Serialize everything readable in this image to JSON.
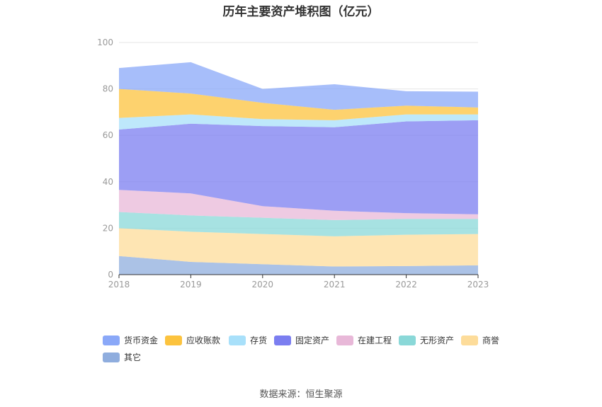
{
  "chart_data": {
    "type": "area",
    "stacked": true,
    "title": "历年主要资产堆积图（亿元）",
    "x": [
      "2018",
      "2019",
      "2020",
      "2021",
      "2022",
      "2023"
    ],
    "ylim": [
      0,
      100
    ],
    "yticks": [
      0,
      20,
      40,
      60,
      80,
      100
    ],
    "grid": true,
    "legend_position": "bottom",
    "series": [
      {
        "name": "其它",
        "color": "#8fadde",
        "values": [
          8.0,
          5.5,
          4.5,
          3.5,
          3.7,
          4.0
        ]
      },
      {
        "name": "商誉",
        "color": "#fddc9a",
        "values": [
          12.0,
          13.0,
          13.0,
          13.0,
          13.5,
          13.5
        ]
      },
      {
        "name": "无形资产",
        "color": "#8ad8d8",
        "values": [
          7.0,
          7.0,
          7.0,
          7.0,
          6.8,
          6.5
        ]
      },
      {
        "name": "在建工程",
        "color": "#e8b8d8",
        "values": [
          9.5,
          9.5,
          5.0,
          4.0,
          2.5,
          2.0
        ]
      },
      {
        "name": "固定资产",
        "color": "#7b7ef0",
        "values": [
          26.0,
          30.0,
          34.5,
          36.0,
          39.5,
          40.5
        ]
      },
      {
        "name": "存货",
        "color": "#a8e0fa",
        "values": [
          5.0,
          4.0,
          3.0,
          3.0,
          3.0,
          2.5
        ]
      },
      {
        "name": "应收账款",
        "color": "#fcc33e",
        "values": [
          12.5,
          9.0,
          7.0,
          4.5,
          3.8,
          3.0
        ]
      },
      {
        "name": "货币资金",
        "color": "#8aa8f8",
        "values": [
          9.0,
          13.5,
          6.0,
          11.0,
          6.2,
          6.8
        ]
      }
    ],
    "legend_order": [
      "货币资金",
      "应收账款",
      "存货",
      "固定资产",
      "在建工程",
      "无形资产",
      "商誉",
      "其它"
    ]
  },
  "footer": {
    "source": "数据来源：恒生聚源"
  }
}
